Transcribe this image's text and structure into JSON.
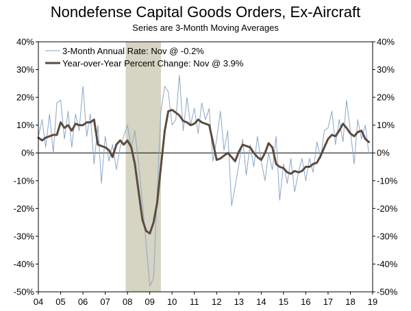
{
  "chart_data": {
    "type": "line",
    "title": "Nondefense Capital Goods Orders, Ex-Aircraft",
    "subtitle": "Series are 3-Month Moving Averages",
    "ylim": [
      -50,
      40
    ],
    "xlim": [
      2004.0,
      2019.0
    ],
    "y_ticks": [
      "40%",
      "30%",
      "20%",
      "10%",
      "0%",
      "-10%",
      "-20%",
      "-30%",
      "-40%",
      "-50%"
    ],
    "y_tick_values": [
      40,
      30,
      20,
      10,
      0,
      -10,
      -20,
      -30,
      -40,
      -50
    ],
    "x_tick_labels": [
      "04",
      "05",
      "06",
      "07",
      "08",
      "09",
      "10",
      "11",
      "12",
      "13",
      "14",
      "15",
      "16",
      "17",
      "18",
      "19"
    ],
    "x_tick_values": [
      2004,
      2005,
      2006,
      2007,
      2008,
      2009,
      2010,
      2011,
      2012,
      2013,
      2014,
      2015,
      2016,
      2017,
      2018,
      2019
    ],
    "recession_shading": {
      "start": 2007.92,
      "end": 2009.5,
      "color": "#d6d4c2"
    },
    "legend_position": "top-left",
    "grid": false,
    "series": [
      {
        "name": "3-Month Annual Rate: Nov @ -0.2%",
        "color": "#8aa6c4",
        "x": [
          2004.0,
          2004.17,
          2004.33,
          2004.5,
          2004.67,
          2004.83,
          2005.0,
          2005.17,
          2005.33,
          2005.5,
          2005.67,
          2005.83,
          2006.0,
          2006.17,
          2006.33,
          2006.5,
          2006.67,
          2006.83,
          2007.0,
          2007.17,
          2007.33,
          2007.5,
          2007.67,
          2007.83,
          2008.0,
          2008.17,
          2008.33,
          2008.5,
          2008.67,
          2008.83,
          2009.0,
          2009.17,
          2009.33,
          2009.5,
          2009.67,
          2009.83,
          2010.0,
          2010.17,
          2010.33,
          2010.5,
          2010.67,
          2010.83,
          2011.0,
          2011.17,
          2011.33,
          2011.5,
          2011.67,
          2011.83,
          2012.0,
          2012.17,
          2012.33,
          2012.5,
          2012.67,
          2012.83,
          2013.0,
          2013.17,
          2013.33,
          2013.5,
          2013.67,
          2013.83,
          2014.0,
          2014.17,
          2014.33,
          2014.5,
          2014.67,
          2014.83,
          2015.0,
          2015.17,
          2015.33,
          2015.5,
          2015.67,
          2015.83,
          2016.0,
          2016.17,
          2016.33,
          2016.5,
          2016.67,
          2016.83,
          2017.0,
          2017.17,
          2017.33,
          2017.5,
          2017.67,
          2017.83,
          2018.0,
          2018.17,
          2018.33,
          2018.5,
          2018.67,
          2018.83
        ],
        "values": [
          6,
          12,
          2,
          14,
          0,
          18,
          19,
          5,
          15,
          2,
          14,
          8,
          24,
          6,
          14,
          -4,
          10,
          -11,
          6,
          -3,
          3,
          -6,
          2,
          6,
          10,
          2,
          8,
          -4,
          -18,
          -32,
          -48,
          -45,
          -15,
          15,
          24,
          22,
          10,
          12,
          28,
          8,
          20,
          10,
          16,
          7,
          18,
          12,
          16,
          -3,
          5,
          15,
          1,
          8,
          -19,
          -12,
          -4,
          5,
          -8,
          3,
          -5,
          6,
          -3,
          -10,
          0,
          -6,
          6,
          -17,
          -4,
          -11,
          -2,
          -14,
          -7,
          -2,
          -10,
          -2,
          -7,
          4,
          -2,
          8,
          9,
          15,
          3,
          12,
          4,
          19,
          8,
          -4,
          12,
          5,
          10,
          -0.2
        ]
      },
      {
        "name": "Year-over-Year Percent Change: Nov @ 3.9%",
        "color": "#5a4b3e",
        "x": [
          2004.0,
          2004.17,
          2004.33,
          2004.5,
          2004.67,
          2004.83,
          2005.0,
          2005.17,
          2005.33,
          2005.5,
          2005.67,
          2005.83,
          2006.0,
          2006.17,
          2006.33,
          2006.5,
          2006.67,
          2006.83,
          2007.0,
          2007.17,
          2007.33,
          2007.5,
          2007.67,
          2007.83,
          2008.0,
          2008.17,
          2008.33,
          2008.5,
          2008.67,
          2008.83,
          2009.0,
          2009.17,
          2009.33,
          2009.5,
          2009.67,
          2009.83,
          2010.0,
          2010.17,
          2010.33,
          2010.5,
          2010.67,
          2010.83,
          2011.0,
          2011.17,
          2011.33,
          2011.5,
          2011.67,
          2011.83,
          2012.0,
          2012.17,
          2012.33,
          2012.5,
          2012.67,
          2012.83,
          2013.0,
          2013.17,
          2013.33,
          2013.5,
          2013.67,
          2013.83,
          2014.0,
          2014.17,
          2014.33,
          2014.5,
          2014.67,
          2014.83,
          2015.0,
          2015.17,
          2015.33,
          2015.5,
          2015.67,
          2015.83,
          2016.0,
          2016.17,
          2016.33,
          2016.5,
          2016.67,
          2016.83,
          2017.0,
          2017.17,
          2017.33,
          2017.5,
          2017.67,
          2017.83,
          2018.0,
          2018.17,
          2018.33,
          2018.5,
          2018.67,
          2018.83
        ],
        "values": [
          5.5,
          4.5,
          5.5,
          6,
          6.5,
          6.5,
          11,
          9,
          10,
          8,
          10.5,
          10,
          10,
          11,
          11,
          12,
          3,
          2.5,
          2,
          1,
          -1.5,
          3,
          4.5,
          3,
          4.5,
          2,
          -4,
          -14,
          -24,
          -28,
          -29,
          -25,
          -18,
          -5,
          8,
          15,
          15.5,
          14.5,
          13.5,
          11.5,
          11,
          10,
          10.5,
          12,
          11,
          10.5,
          10,
          4,
          -2.5,
          -2,
          -1,
          0,
          -1.5,
          -3,
          0.5,
          3,
          2.5,
          2,
          0,
          -1.5,
          -2.5,
          0,
          3.5,
          2,
          -4,
          -5,
          -5.5,
          -7,
          -7.5,
          -6.5,
          -7,
          -6.5,
          -5,
          -5,
          -4,
          -3.5,
          -1,
          2,
          5,
          6.5,
          6,
          8,
          10.5,
          9,
          7,
          6,
          7.5,
          8,
          5,
          3.9
        ]
      }
    ]
  }
}
